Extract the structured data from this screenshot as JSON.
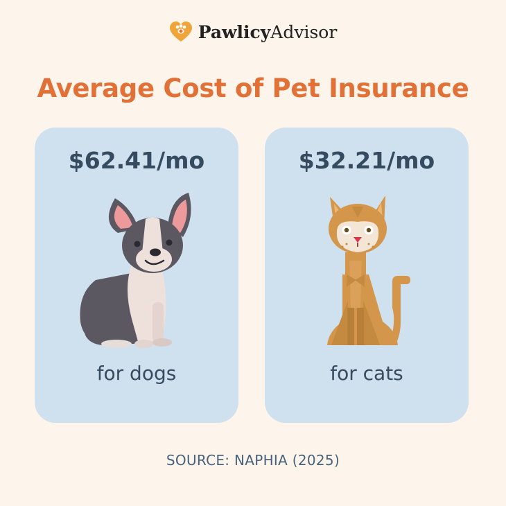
{
  "brand": {
    "name_bold": "Pawlicy",
    "name_regular": "Advisor",
    "icon": "paw-heart-icon"
  },
  "title": "Average Cost of Pet Insurance",
  "cards": [
    {
      "price": "$62.41/mo",
      "label": "for dogs",
      "illustration": "dog-illustration"
    },
    {
      "price": "$32.21/mo",
      "label": "for cats",
      "illustration": "cat-illustration"
    }
  ],
  "source": "SOURCE: NAPHIA (2025)",
  "colors": {
    "background": "#fdf5ec",
    "accent": "#e27137",
    "card": "#cfe0ee",
    "text": "#354b60"
  }
}
